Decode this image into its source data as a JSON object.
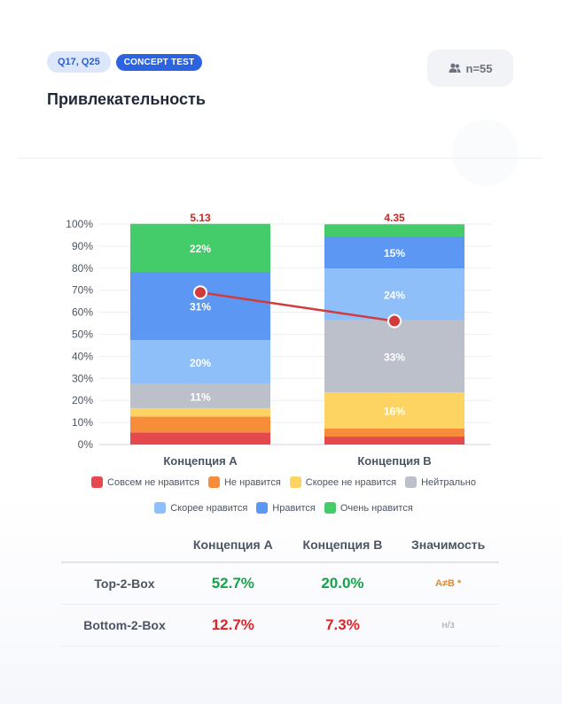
{
  "header": {
    "tag_questions": "Q17, Q25",
    "tag_type": "CONCEPT TEST",
    "n_label": "n=55",
    "title": "Привлекательность"
  },
  "colors": {
    "very_dislike": "#e5484d",
    "dislike": "#f78c3a",
    "rather_dislike": "#fdd462",
    "neutral": "#bcc0ca",
    "rather_like": "#8fbff9",
    "like": "#5b97f3",
    "very_like": "#44cc6b",
    "mean_line": "#d33a3a"
  },
  "chart_data": {
    "type": "bar",
    "stacked": true,
    "categories": [
      "Концепция A",
      "Концепция B"
    ],
    "ylim": [
      0,
      100
    ],
    "yticks": [
      "0%",
      "10%",
      "20%",
      "30%",
      "40%",
      "50%",
      "60%",
      "70%",
      "80%",
      "90%",
      "100%"
    ],
    "grid": true,
    "legend_position": "bottom",
    "series": [
      {
        "name": "Совсем не нравится",
        "values": [
          5.5,
          3.6
        ],
        "labels": [
          "",
          ""
        ]
      },
      {
        "name": "Не нравится",
        "values": [
          7.2,
          3.7
        ],
        "labels": [
          "",
          ""
        ]
      },
      {
        "name": "Скорее не нравится",
        "values": [
          3.8,
          16.3
        ],
        "labels": [
          "",
          "16%"
        ]
      },
      {
        "name": "Нейтрально",
        "values": [
          10.9,
          32.7
        ],
        "labels": [
          "11%",
          "33%"
        ]
      },
      {
        "name": "Скорее нравится",
        "values": [
          20.0,
          23.6
        ],
        "labels": [
          "20%",
          "24%"
        ]
      },
      {
        "name": "Нравится",
        "values": [
          30.9,
          14.5
        ],
        "labels": [
          "31%",
          "15%"
        ]
      },
      {
        "name": "Очень нравится",
        "values": [
          21.8,
          5.5
        ],
        "labels": [
          "22%",
          ""
        ]
      }
    ],
    "mean_scores": [
      "5.13",
      "4.35"
    ],
    "mean_line_values": [
      69,
      56
    ]
  },
  "table": {
    "headers": [
      "",
      "Концепция A",
      "Концепция B",
      "Значимость"
    ],
    "rows": [
      {
        "label": "Top-2-Box",
        "a": "52.7%",
        "b": "20.0%",
        "sig": "A≠B *"
      },
      {
        "label": "Bottom-2-Box",
        "a": "12.7%",
        "b": "7.3%",
        "sig": "н/з"
      }
    ]
  }
}
